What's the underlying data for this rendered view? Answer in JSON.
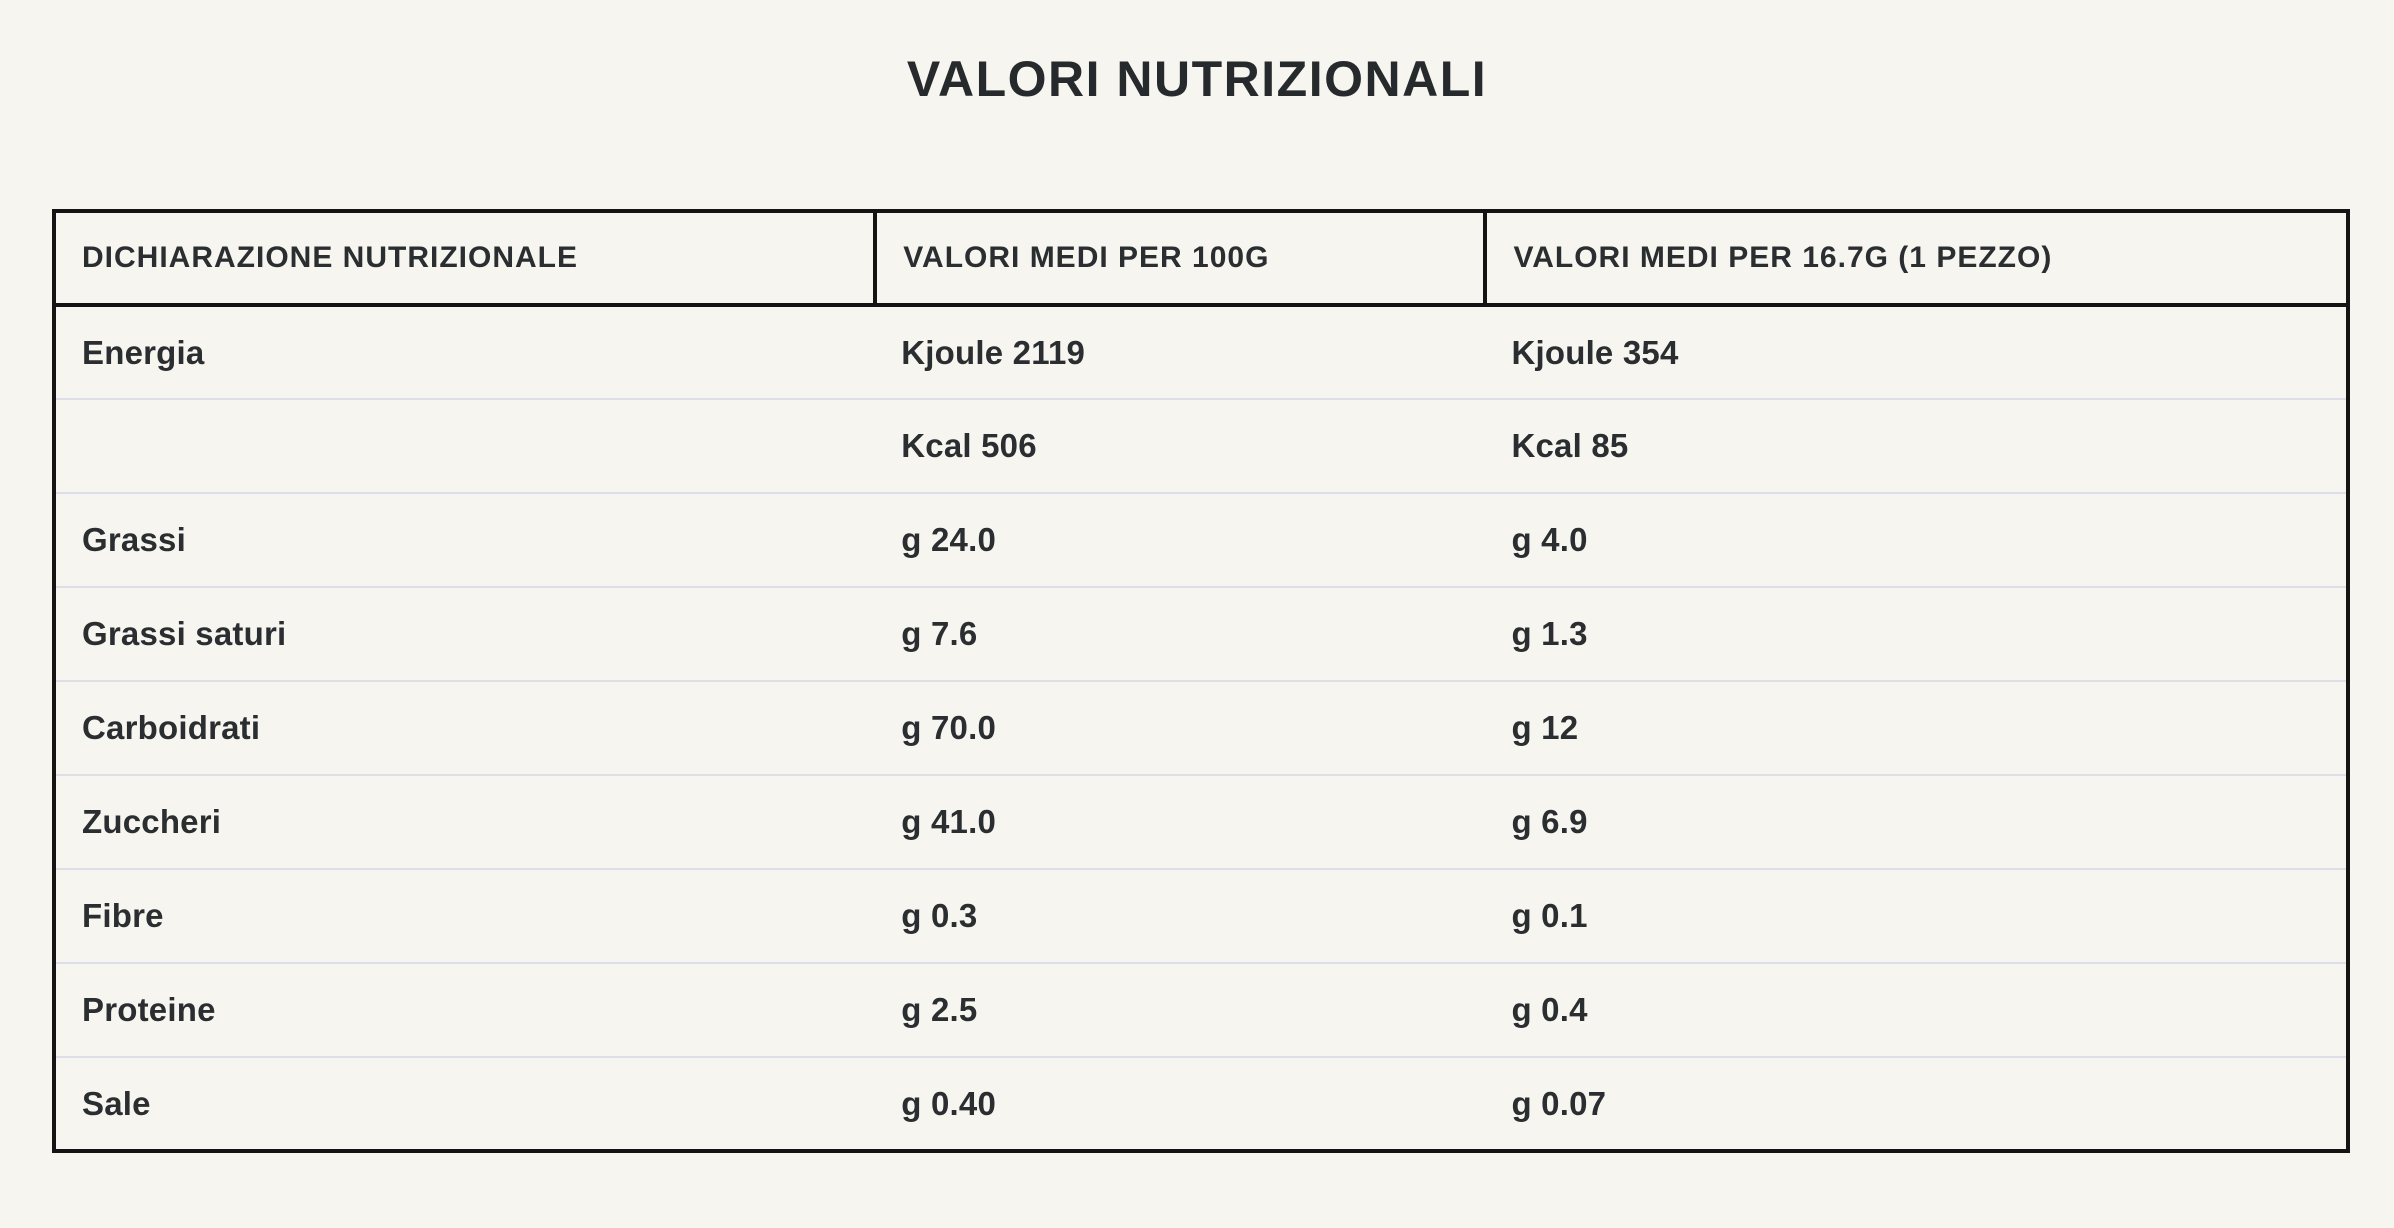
{
  "title": "VALORI NUTRIZIONALI",
  "colors": {
    "background": "#f6f5f0",
    "text": "#2b2e30",
    "table_border": "#141414",
    "row_divider": "#dcdee8"
  },
  "table": {
    "headers": [
      "DICHIARAZIONE NUTRIZIONALE",
      "VALORI MEDI PER 100G",
      "VALORI MEDI PER 16.7G (1 PEZZO)"
    ],
    "rows": [
      {
        "nutrient": "Energia",
        "per_100g": "Kjoule 2119",
        "per_piece": "Kjoule 354"
      },
      {
        "nutrient": "",
        "per_100g": "Kcal 506",
        "per_piece": "Kcal 85"
      },
      {
        "nutrient": "Grassi",
        "per_100g": "g 24.0",
        "per_piece": "g 4.0"
      },
      {
        "nutrient": "Grassi saturi",
        "per_100g": "g 7.6",
        "per_piece": "g 1.3"
      },
      {
        "nutrient": "Carboidrati",
        "per_100g": "g 70.0",
        "per_piece": "g 12"
      },
      {
        "nutrient": "Zuccheri",
        "per_100g": "g 41.0",
        "per_piece": "g 6.9"
      },
      {
        "nutrient": "Fibre",
        "per_100g": "g 0.3",
        "per_piece": "g 0.1"
      },
      {
        "nutrient": "Proteine",
        "per_100g": "g 2.5",
        "per_piece": "g 0.4"
      },
      {
        "nutrient": "Sale",
        "per_100g": "g 0.40",
        "per_piece": "g 0.07"
      }
    ]
  }
}
